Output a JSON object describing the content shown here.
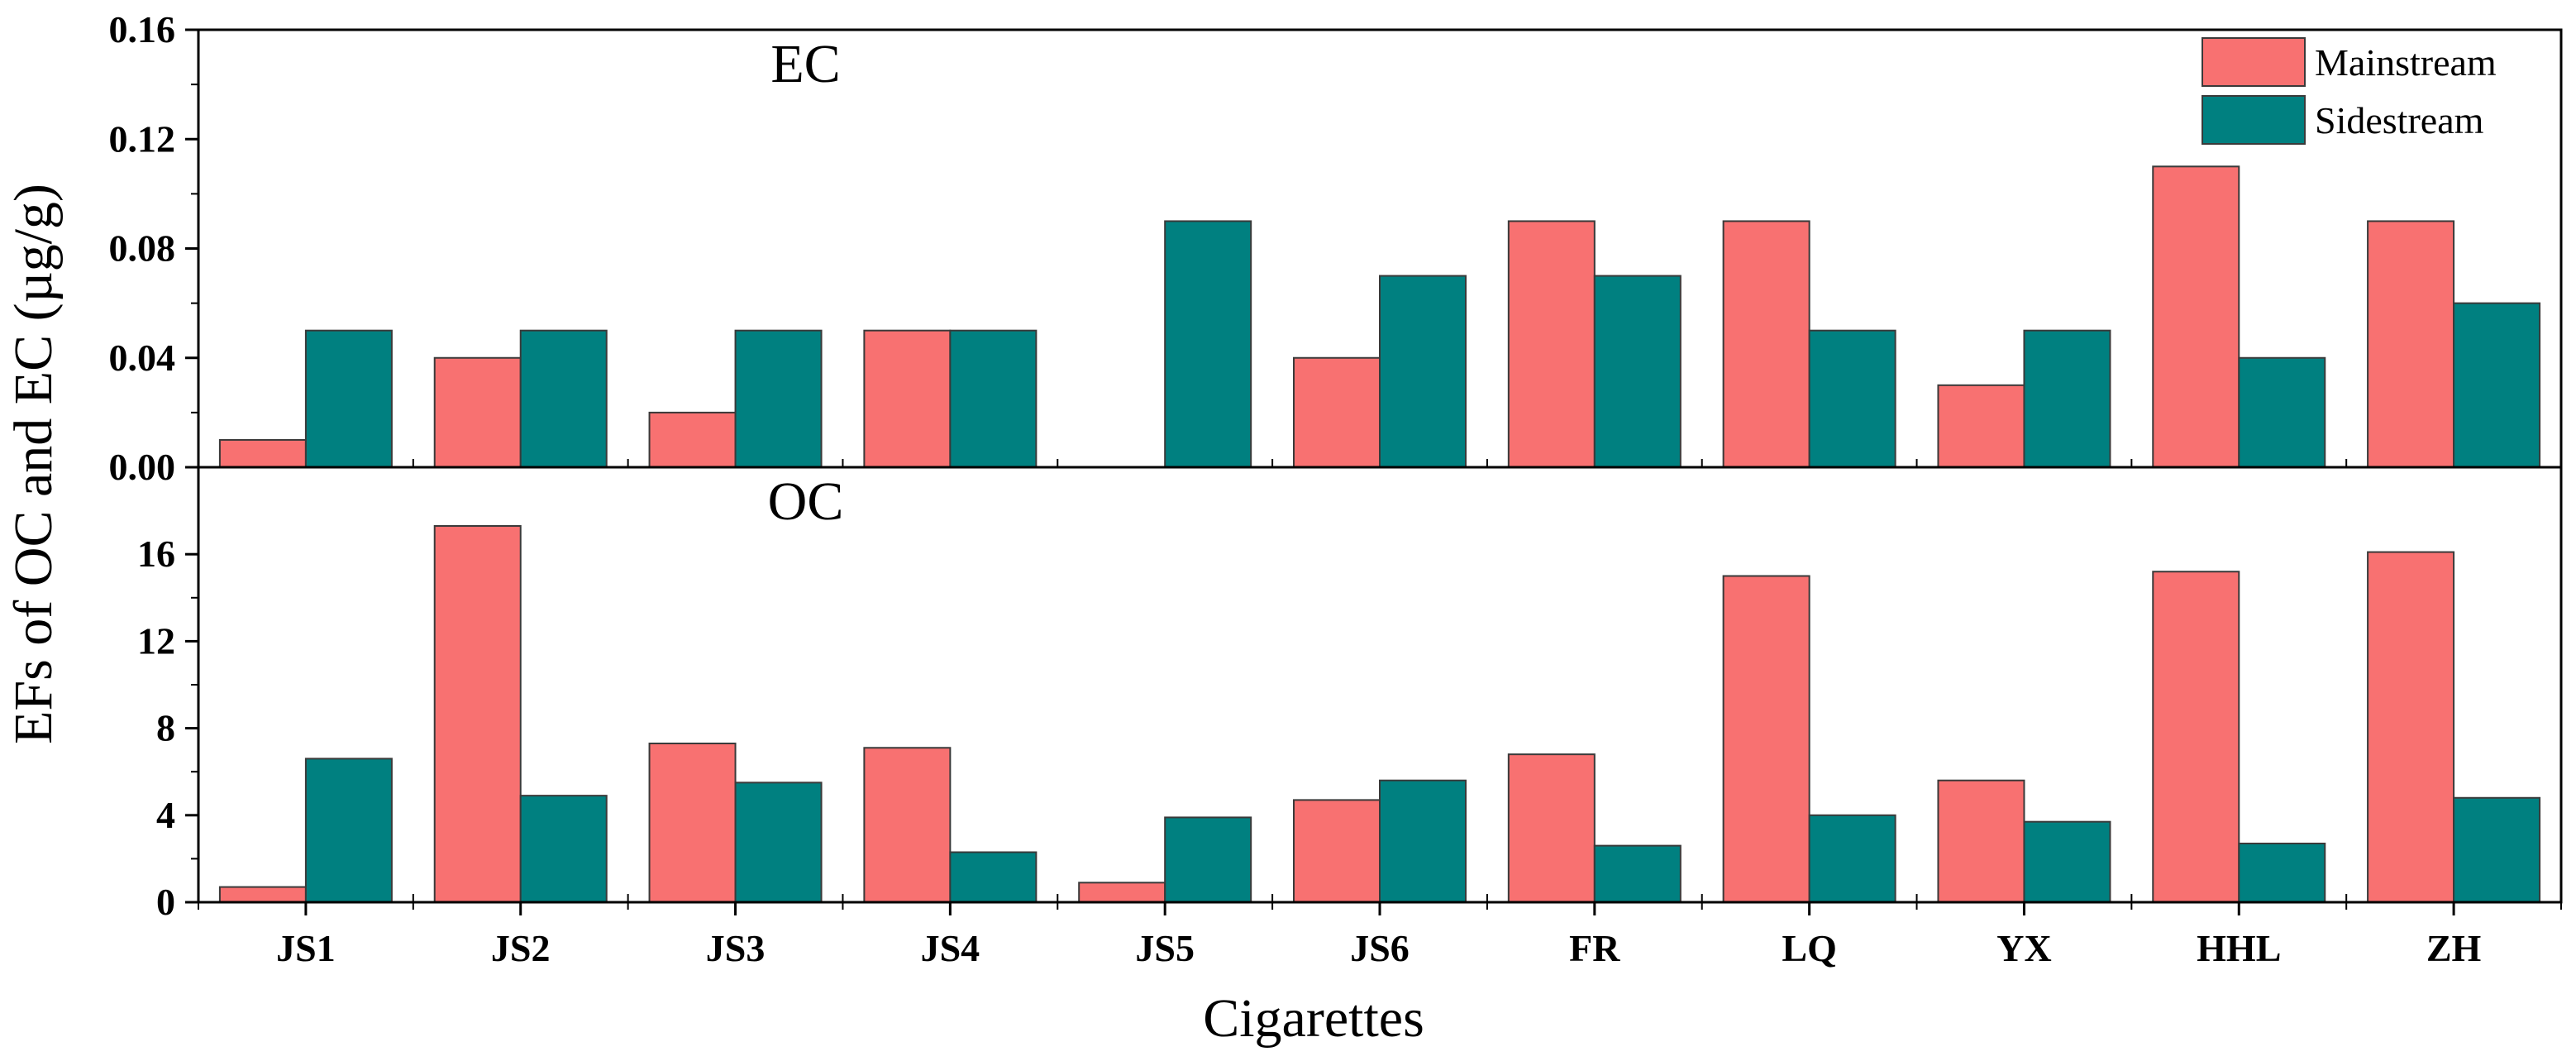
{
  "chart_data": {
    "type": "bar",
    "ylabel": "EFs of OC and EC (µg/g)",
    "xlabel": "Cigarettes",
    "categories": [
      "JS1",
      "JS2",
      "JS3",
      "JS4",
      "JS5",
      "JS6",
      "FR",
      "LQ",
      "YX",
      "HHL",
      "ZH"
    ],
    "legend": {
      "position": "top-right",
      "entries": [
        {
          "name": "Mainstream",
          "color": "#F87171"
        },
        {
          "name": "Sidestream",
          "color": "#008080"
        }
      ]
    },
    "panels": [
      {
        "title": "EC",
        "ylim": [
          0,
          0.16
        ],
        "yticks": [
          "0.00",
          "0.04",
          "0.08",
          "0.12",
          "0.16"
        ],
        "series": [
          {
            "name": "Mainstream",
            "values": [
              0.01,
              0.04,
              0.02,
              0.05,
              0.0,
              0.04,
              0.09,
              0.09,
              0.03,
              0.11,
              0.09
            ]
          },
          {
            "name": "Sidestream",
            "values": [
              0.05,
              0.05,
              0.05,
              0.05,
              0.09,
              0.07,
              0.07,
              0.05,
              0.05,
              0.04,
              0.06
            ]
          }
        ]
      },
      {
        "title": "OC",
        "ylim": [
          0,
          20
        ],
        "yticks": [
          "0",
          "4",
          "8",
          "12",
          "16"
        ],
        "series": [
          {
            "name": "Mainstream",
            "values": [
              0.7,
              17.3,
              7.3,
              7.1,
              0.9,
              4.7,
              6.8,
              15.0,
              5.6,
              15.2,
              16.1
            ]
          },
          {
            "name": "Sidestream",
            "values": [
              6.6,
              4.9,
              5.5,
              2.3,
              3.9,
              5.6,
              2.6,
              4.0,
              3.7,
              2.7,
              4.8
            ]
          }
        ]
      }
    ]
  }
}
